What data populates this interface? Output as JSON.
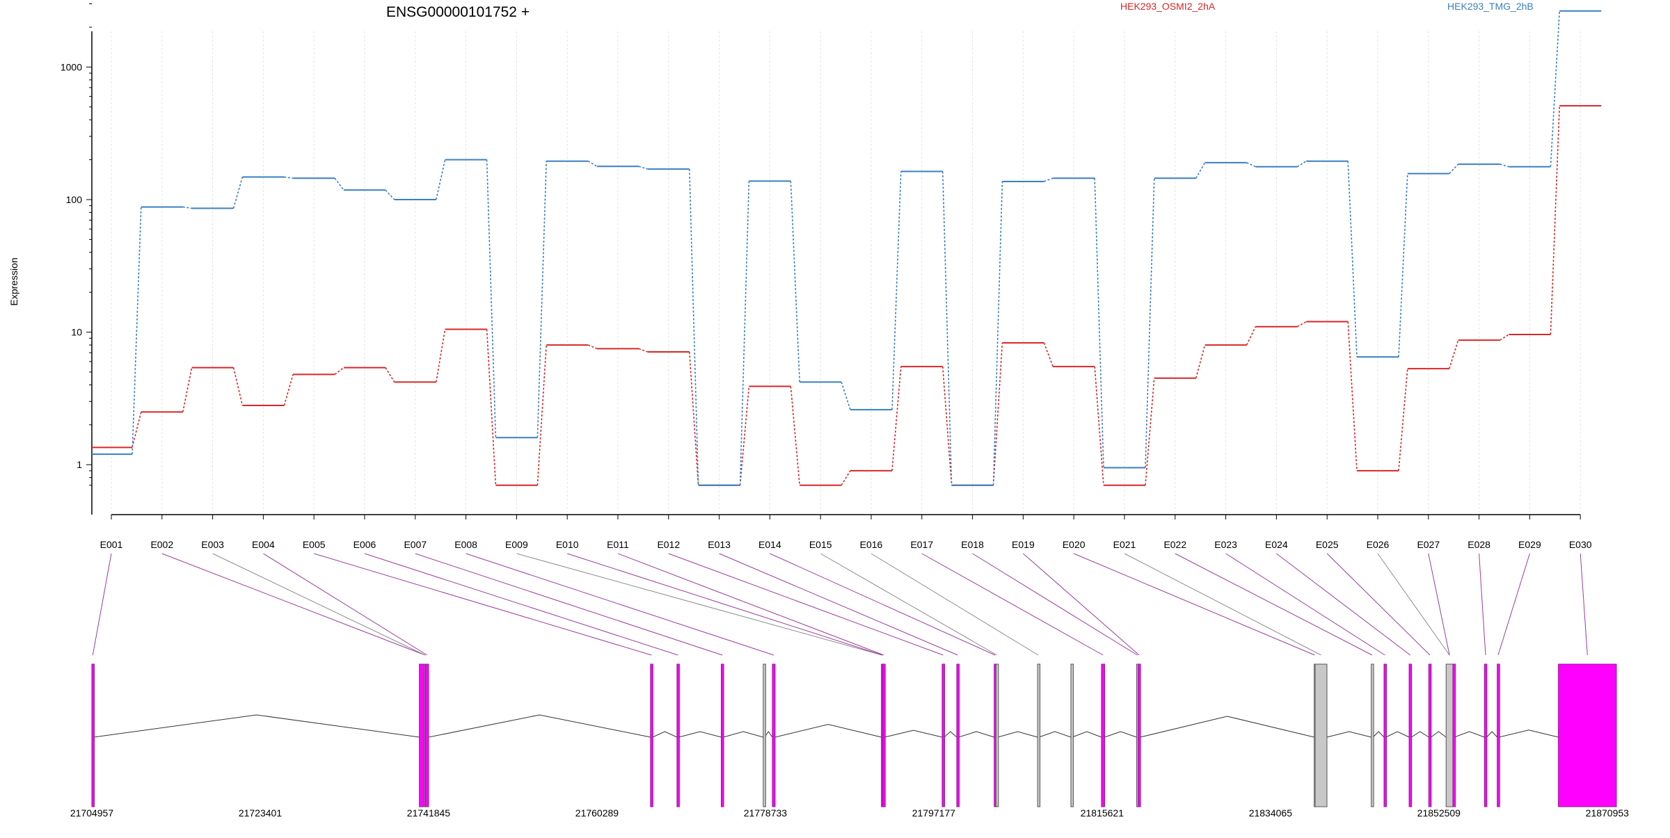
{
  "chart_data": {
    "type": "line",
    "title": "ENSG00000101752 +",
    "ylabel": "Expression",
    "xlabel": "",
    "y_scale": "log",
    "ylim": [
      0.7,
      3500
    ],
    "y_ticks": [
      1,
      10,
      100,
      1000
    ],
    "y_tick_labels": [
      "1",
      "10",
      "100",
      "1000"
    ],
    "grid": "vertical dotted lines at each exon",
    "legend_placement": "top",
    "categories": [
      "E001",
      "E002",
      "E003",
      "E004",
      "E005",
      "E006",
      "E007",
      "E008",
      "E009",
      "E010",
      "E011",
      "E012",
      "E013",
      "E014",
      "E015",
      "E016",
      "E017",
      "E018",
      "E019",
      "E020",
      "E021",
      "E022",
      "E023",
      "E024",
      "E025",
      "E026",
      "E027",
      "E028",
      "E029",
      "E030"
    ],
    "series": [
      {
        "name": "HEK293_OSMI2_2hA",
        "color": "#d62728",
        "values": [
          1.35,
          2.5,
          5.4,
          2.8,
          4.8,
          5.4,
          4.2,
          10.5,
          0.7,
          8.0,
          7.5,
          7.1,
          0.7,
          3.9,
          0.7,
          0.9,
          5.5,
          0.7,
          8.3,
          5.5,
          0.7,
          4.5,
          8.0,
          11.0,
          12.0,
          0.9,
          5.3,
          8.7,
          9.6,
          510
        ]
      },
      {
        "name": "HEK293_TMG_2hB",
        "color": "#3a7fc1",
        "values": [
          1.2,
          88,
          86,
          148,
          145,
          118,
          100,
          200,
          1.6,
          195,
          178,
          170,
          0.7,
          138,
          4.2,
          2.6,
          163,
          0.7,
          137,
          145,
          0.95,
          145,
          190,
          177,
          195,
          6.5,
          157,
          185,
          177,
          2650
        ]
      }
    ],
    "gene_model": {
      "coordinate_ticks": [
        "21704957",
        "21723401",
        "21741845",
        "21760289",
        "21778733",
        "21797177",
        "21815621",
        "21834065",
        "21852509",
        "21870953"
      ],
      "coordinate_tick_values": [
        21704957,
        21723401,
        21741845,
        21760289,
        21778733,
        21797177,
        21815621,
        21834065,
        21852509,
        21870953
      ],
      "genomic_range": [
        21704957,
        21871958
      ],
      "exon_color": "#ff00ff",
      "nonsignificant_exon_color": "#c8c8c8",
      "exons": [
        {
          "id": "E001",
          "start": 21704957,
          "end": 21705160,
          "significant": true
        },
        {
          "id": "E002",
          "start": 21740830,
          "end": 21741400,
          "significant": true
        },
        {
          "id": "E003",
          "start": 21741400,
          "end": 21741500,
          "significant": false
        },
        {
          "id": "E004",
          "start": 21741500,
          "end": 21741845,
          "significant": true
        },
        {
          "id": "E005",
          "start": 21766150,
          "end": 21766380,
          "significant": true
        },
        {
          "id": "E006",
          "start": 21769050,
          "end": 21769260,
          "significant": true
        },
        {
          "id": "E007",
          "start": 21773900,
          "end": 21774130,
          "significant": true
        },
        {
          "id": "E008",
          "start": 21778500,
          "end": 21778650,
          "significant": false
        },
        {
          "id": "E009",
          "start": 21779500,
          "end": 21779800,
          "significant": true
        },
        {
          "id": "E010",
          "start": 21791440,
          "end": 21791600,
          "significant": true
        },
        {
          "id": "E011",
          "start": 21791600,
          "end": 21791800,
          "significant": true
        },
        {
          "id": "E012",
          "start": 21798100,
          "end": 21798320,
          "significant": true
        },
        {
          "id": "E013",
          "start": 21799700,
          "end": 21799900,
          "significant": true
        },
        {
          "id": "E014",
          "start": 21803800,
          "end": 21804000,
          "significant": true
        },
        {
          "id": "E015",
          "start": 21804000,
          "end": 21804200,
          "significant": false
        },
        {
          "id": "E016",
          "start": 21808550,
          "end": 21808700,
          "significant": false
        },
        {
          "id": "E017",
          "start": 21812200,
          "end": 21812350,
          "significant": false
        },
        {
          "id": "E018",
          "start": 21815550,
          "end": 21815900,
          "significant": true
        },
        {
          "id": "E019",
          "start": 21819400,
          "end": 21819560,
          "significant": false
        },
        {
          "id": "E020",
          "start": 21819560,
          "end": 21819800,
          "significant": true
        },
        {
          "id": "E021",
          "start": 21838850,
          "end": 21838960,
          "significant": false
        },
        {
          "id": "E022",
          "start": 21838960,
          "end": 21840250,
          "significant": false
        },
        {
          "id": "E023",
          "start": 21845100,
          "end": 21845300,
          "significant": false
        },
        {
          "id": "E024",
          "start": 21846500,
          "end": 21846700,
          "significant": true
        },
        {
          "id": "E025",
          "start": 21849250,
          "end": 21849500,
          "significant": true
        },
        {
          "id": "E026",
          "start": 21851400,
          "end": 21851650,
          "significant": true
        },
        {
          "id": "E027",
          "start": 21853300,
          "end": 21854050,
          "significant": false
        },
        {
          "id": "E028",
          "start": 21854050,
          "end": 21854200,
          "significant": true
        },
        {
          "id": "E029",
          "start": 21857500,
          "end": 21857750,
          "significant": true
        },
        {
          "id": "E030",
          "start": 21858900,
          "end": 21859100,
          "significant": true
        },
        {
          "id": "E031",
          "start": 21865600,
          "end": 21871958,
          "significant": true
        }
      ],
      "exon_links": [
        {
          "label": "E001",
          "exon": 0,
          "highlighted": true
        },
        {
          "label": "E002",
          "exon": 2,
          "highlighted": true
        },
        {
          "label": "E003",
          "exon": 2,
          "highlighted": false
        },
        {
          "label": "E004",
          "exon": 3,
          "highlighted": true
        },
        {
          "label": "E005",
          "exon": 4,
          "highlighted": true
        },
        {
          "label": "E006",
          "exon": 5,
          "highlighted": true
        },
        {
          "label": "E007",
          "exon": 6,
          "highlighted": true
        },
        {
          "label": "E008",
          "exon": 8,
          "highlighted": true
        },
        {
          "label": "E009",
          "exon": 9,
          "highlighted": false
        },
        {
          "label": "E010",
          "exon": 9,
          "highlighted": true
        },
        {
          "label": "E011",
          "exon": 10,
          "highlighted": true
        },
        {
          "label": "E012",
          "exon": 11,
          "highlighted": true
        },
        {
          "label": "E013",
          "exon": 12,
          "highlighted": true
        },
        {
          "label": "E014",
          "exon": 13,
          "highlighted": true
        },
        {
          "label": "E015",
          "exon": 14,
          "highlighted": false
        },
        {
          "label": "E016",
          "exon": 15,
          "highlighted": false
        },
        {
          "label": "E017",
          "exon": 17,
          "highlighted": true
        },
        {
          "label": "E018",
          "exon": 18,
          "highlighted": true
        },
        {
          "label": "E019",
          "exon": 19,
          "highlighted": true
        },
        {
          "label": "E020",
          "exon": 20,
          "highlighted": true
        },
        {
          "label": "E021",
          "exon": 21,
          "highlighted": false
        },
        {
          "label": "E022",
          "exon": 22,
          "highlighted": true
        },
        {
          "label": "E023",
          "exon": 23,
          "highlighted": true
        },
        {
          "label": "E024",
          "exon": 24,
          "highlighted": true
        },
        {
          "label": "E025",
          "exon": 25,
          "highlighted": true
        },
        {
          "label": "E026",
          "exon": 26,
          "highlighted": false
        },
        {
          "label": "E027",
          "exon": 26,
          "highlighted": true
        },
        {
          "label": "E028",
          "exon": 28,
          "highlighted": true
        },
        {
          "label": "E029",
          "exon": 29,
          "highlighted": true
        },
        {
          "label": "E030",
          "exon": 30,
          "highlighted": true
        }
      ]
    }
  }
}
